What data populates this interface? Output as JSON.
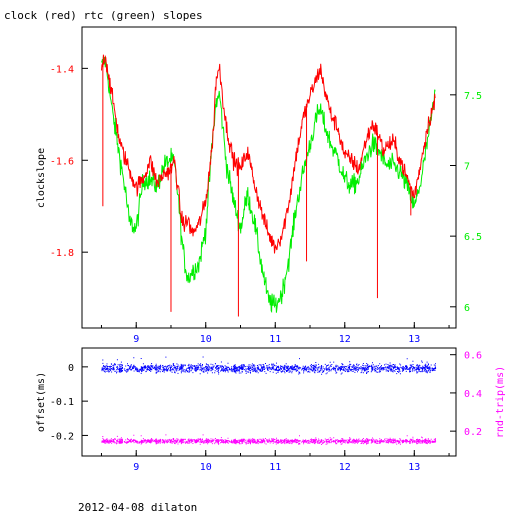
{
  "header": {
    "title": "clock (red) rtc (green) slopes"
  },
  "footer": {
    "caption": "2012-04-08 dilaton"
  },
  "colors": {
    "clock": "#ff0000",
    "rtc": "#00ee00",
    "offset": "#0000ff",
    "roundtrip": "#ff00ff",
    "frame": "#000000",
    "left_tick_top": "#ff0000",
    "right_tick_top": "#00ee00",
    "left_tick_bottom": "#000000",
    "right_tick_bottom": "#ff00ff",
    "x_tick": "#0000ff"
  },
  "chart_data": [
    {
      "type": "line",
      "title": "clock (red) rtc (green) slopes",
      "xlabel": "",
      "ylabel": "clockslope",
      "xlim": [
        8.22,
        13.6
      ],
      "ylim": [
        -1.965,
        -1.31
      ],
      "x_ticks": [
        "9",
        "10",
        "11",
        "12",
        "13"
      ],
      "y_ticks": [
        "-1.4",
        "-1.6",
        "-1.8"
      ],
      "grid": false,
      "series": [
        {
          "name": "clock",
          "axis": "left",
          "x": [
            8.5,
            8.55,
            8.6,
            8.65,
            8.7,
            8.75,
            8.8,
            8.85,
            8.9,
            9.0,
            9.1,
            9.2,
            9.3,
            9.4,
            9.5,
            9.55,
            9.6,
            9.65,
            9.7,
            9.75,
            9.8,
            9.9,
            10.0,
            10.1,
            10.15,
            10.2,
            10.25,
            10.3,
            10.4,
            10.5,
            10.6,
            10.7,
            10.8,
            10.9,
            11.0,
            11.1,
            11.2,
            11.3,
            11.4,
            11.5,
            11.6,
            11.65,
            11.7,
            11.8,
            11.9,
            12.0,
            12.1,
            12.2,
            12.3,
            12.4,
            12.5,
            12.55,
            12.6,
            12.7,
            12.8,
            12.9,
            13.0,
            13.1,
            13.2,
            13.3
          ],
          "values": [
            -1.4,
            -1.37,
            -1.41,
            -1.46,
            -1.5,
            -1.55,
            -1.58,
            -1.6,
            -1.62,
            -1.66,
            -1.64,
            -1.6,
            -1.65,
            -1.63,
            -1.62,
            -1.6,
            -1.66,
            -1.73,
            -1.74,
            -1.73,
            -1.76,
            -1.74,
            -1.69,
            -1.56,
            -1.42,
            -1.4,
            -1.47,
            -1.53,
            -1.6,
            -1.62,
            -1.58,
            -1.65,
            -1.71,
            -1.76,
            -1.79,
            -1.76,
            -1.69,
            -1.59,
            -1.51,
            -1.46,
            -1.42,
            -1.4,
            -1.44,
            -1.5,
            -1.53,
            -1.59,
            -1.6,
            -1.62,
            -1.56,
            -1.52,
            -1.55,
            -1.58,
            -1.57,
            -1.56,
            -1.6,
            -1.64,
            -1.68,
            -1.6,
            -1.52,
            -1.47
          ]
        },
        {
          "name": "rtc",
          "axis": "right",
          "ylim": [
            5.85,
            7.98
          ],
          "y_ticks": [
            "7.5",
            "7",
            "6.5",
            "6"
          ],
          "x": [
            8.5,
            8.55,
            8.6,
            8.65,
            8.7,
            8.75,
            8.8,
            8.85,
            8.9,
            9.0,
            9.1,
            9.2,
            9.3,
            9.4,
            9.5,
            9.55,
            9.6,
            9.65,
            9.7,
            9.75,
            9.8,
            9.9,
            10.0,
            10.1,
            10.15,
            10.2,
            10.25,
            10.3,
            10.4,
            10.5,
            10.6,
            10.7,
            10.8,
            10.9,
            11.0,
            11.1,
            11.2,
            11.3,
            11.4,
            11.5,
            11.6,
            11.65,
            11.7,
            11.8,
            11.9,
            12.0,
            12.1,
            12.2,
            12.3,
            12.4,
            12.5,
            12.55,
            12.6,
            12.7,
            12.8,
            12.9,
            13.0,
            13.1,
            13.2,
            13.3
          ],
          "values": [
            7.7,
            7.75,
            7.6,
            7.4,
            7.25,
            7.1,
            6.95,
            6.8,
            6.6,
            6.55,
            6.9,
            6.9,
            6.85,
            7.0,
            7.05,
            7.0,
            6.8,
            6.5,
            6.3,
            6.2,
            6.25,
            6.3,
            6.55,
            7.2,
            7.45,
            7.5,
            7.25,
            7.0,
            6.75,
            6.55,
            6.8,
            6.6,
            6.3,
            6.05,
            6.0,
            6.1,
            6.35,
            6.7,
            6.95,
            7.15,
            7.35,
            7.4,
            7.3,
            7.15,
            7.05,
            6.9,
            6.85,
            6.9,
            7.05,
            7.15,
            7.1,
            7.05,
            7.0,
            7.0,
            6.95,
            6.85,
            6.7,
            6.9,
            7.2,
            7.5
          ]
        }
      ]
    },
    {
      "type": "scatter",
      "xlabel": "",
      "ylabel": "offset(ms)",
      "y2label": "rnd-trip(ms)",
      "xlim": [
        8.22,
        13.6
      ],
      "ylim": [
        -0.26,
        0.055
      ],
      "x_ticks": [
        "9",
        "10",
        "11",
        "12",
        "13"
      ],
      "y_ticks": [
        "0",
        "-0.1",
        "-0.2"
      ],
      "grid": false,
      "series": [
        {
          "name": "offset(ms)",
          "axis": "left",
          "x_range": [
            8.5,
            13.3
          ],
          "center": -0.003,
          "spread": 0.012
        },
        {
          "name": "rnd-trip(ms)",
          "axis": "right",
          "ylim": [
            0.07,
            0.635
          ],
          "y_ticks": [
            "0.6",
            "0.4",
            "0.2"
          ],
          "x_range": [
            8.5,
            13.3
          ],
          "center": 0.15,
          "spread": 0.012
        }
      ]
    }
  ]
}
